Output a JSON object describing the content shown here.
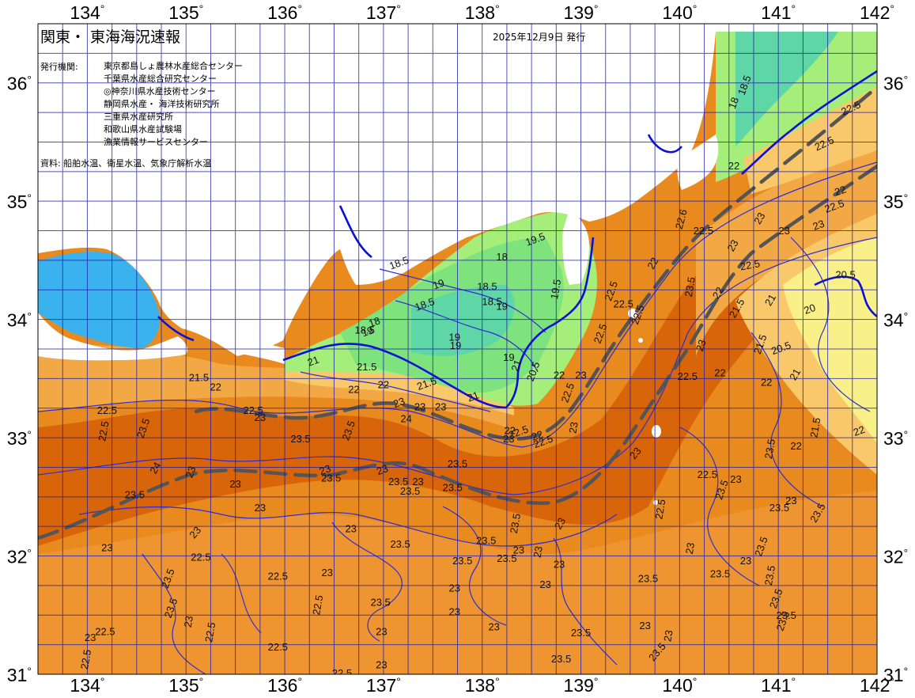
{
  "title": "関東・ 東海海況速報",
  "issued": "2025年12月9日 発行",
  "agencies_label": "発行機関:",
  "agencies": [
    "東京都島しょ農林水産総合センター",
    "千葉県水産総合研究センター",
    "◎神奈川県水産技術センター",
    "静岡県水産・ 海洋技術研究所",
    "三重県水産研究所",
    "和歌山県水産試験場",
    "漁業情報サービスセンター"
  ],
  "source_note": "資料: 船舶水温、衛星水温、気象庁解析水温",
  "axes": {
    "longitudes": [
      "134",
      "135",
      "136",
      "137",
      "138",
      "139",
      "140",
      "141",
      "142"
    ],
    "latitudes": [
      "36",
      "35",
      "34",
      "33",
      "32",
      "31"
    ],
    "degree_symbol": "°"
  },
  "colors": {
    "land": "#ffffff",
    "sea_warm_deep": "#d9650a",
    "sea_warm": "#e98a1e",
    "sea_mid": "#f2a845",
    "sea_light": "#f8c86a",
    "sea_pale": "#f9f089",
    "sea_cool_green": "#a6ee7a",
    "sea_cool_green2": "#7fe37d",
    "sea_teal": "#5fd6a6",
    "sea_blue": "#39b2ee",
    "grid": "#1a1aa8",
    "thin_isotherm": "#2d2dd4",
    "bold_isotherm": "#0a10d8",
    "kuroshio_axis": "#555555"
  },
  "isotherm_labels": [
    {
      "t": "18.5",
      "lon": 140.69,
      "lat": 35.97,
      "rot": -70
    },
    {
      "t": "18",
      "lon": 140.58,
      "lat": 35.82,
      "rot": -70
    },
    {
      "t": "22.5",
      "lon": 141.75,
      "lat": 35.76,
      "rot": -25
    },
    {
      "t": "22.5",
      "lon": 141.48,
      "lat": 35.46,
      "rot": -25
    },
    {
      "t": "22",
      "lon": 140.55,
      "lat": 35.27,
      "rot": 0
    },
    {
      "t": "22",
      "lon": 141.64,
      "lat": 35.06,
      "rot": -20
    },
    {
      "t": "22.5",
      "lon": 141.58,
      "lat": 34.93,
      "rot": -20
    },
    {
      "t": "22.6",
      "lon": 140.05,
      "lat": 34.84,
      "rot": -75
    },
    {
      "t": "22.5",
      "lon": 140.24,
      "lat": 34.72,
      "rot": 0
    },
    {
      "t": "23",
      "lon": 140.84,
      "lat": 34.84,
      "rot": -60
    },
    {
      "t": "23",
      "lon": 141.06,
      "lat": 34.72,
      "rot": 0
    },
    {
      "t": "23",
      "lon": 141.42,
      "lat": 34.77,
      "rot": -20
    },
    {
      "t": "22.5",
      "lon": 140.72,
      "lat": 34.43,
      "rot": -10
    },
    {
      "t": "23",
      "lon": 140.57,
      "lat": 34.61,
      "rot": -60
    },
    {
      "t": "20.5",
      "lon": 141.68,
      "lat": 34.35,
      "rot": 0
    },
    {
      "t": "22",
      "lon": 139.76,
      "lat": 34.46,
      "rot": -60
    },
    {
      "t": "23.5",
      "lon": 140.14,
      "lat": 34.27,
      "rot": -80
    },
    {
      "t": "22",
      "lon": 140.42,
      "lat": 34.21,
      "rot": -60
    },
    {
      "t": "21.5",
      "lon": 140.61,
      "lat": 34.08,
      "rot": -60
    },
    {
      "t": "21",
      "lon": 140.95,
      "lat": 34.15,
      "rot": -60
    },
    {
      "t": "20",
      "lon": 141.33,
      "lat": 34.06,
      "rot": -20
    },
    {
      "t": "20.5",
      "lon": 141.04,
      "lat": 33.73,
      "rot": -20
    },
    {
      "t": "21.5",
      "lon": 140.85,
      "lat": 33.78,
      "rot": -70
    },
    {
      "t": "22.5",
      "lon": 140.08,
      "lat": 33.49,
      "rot": 0
    },
    {
      "t": "22",
      "lon": 140.41,
      "lat": 33.52,
      "rot": 0
    },
    {
      "t": "22",
      "lon": 140.88,
      "lat": 33.44,
      "rot": 0
    },
    {
      "t": "21",
      "lon": 141.2,
      "lat": 33.52,
      "rot": -60
    },
    {
      "t": "23",
      "lon": 140.25,
      "lat": 33.77,
      "rot": -70
    },
    {
      "t": "21.5",
      "lon": 141.41,
      "lat": 33.08,
      "rot": -80
    },
    {
      "t": "22",
      "lon": 141.83,
      "lat": 33.03,
      "rot": -20
    },
    {
      "t": "22",
      "lon": 141.18,
      "lat": 32.9,
      "rot": 0
    },
    {
      "t": "23.5",
      "lon": 140.95,
      "lat": 32.9,
      "rot": -80
    },
    {
      "t": "22.5",
      "lon": 140.28,
      "lat": 32.66,
      "rot": 0
    },
    {
      "t": "23",
      "lon": 140.57,
      "lat": 32.62,
      "rot": 0
    },
    {
      "t": "23.5",
      "lon": 140.46,
      "lat": 32.55,
      "rot": -70
    },
    {
      "t": "22.5",
      "lon": 139.84,
      "lat": 32.39,
      "rot": -80
    },
    {
      "t": "23",
      "lon": 141.13,
      "lat": 32.44,
      "rot": 0
    },
    {
      "t": "23.5",
      "lon": 141.01,
      "lat": 32.38,
      "rot": 0
    },
    {
      "t": "23.5",
      "lon": 141.43,
      "lat": 32.35,
      "rot": -60
    },
    {
      "t": "23",
      "lon": 139.58,
      "lat": 32.85,
      "rot": -50
    },
    {
      "t": "23",
      "lon": 140.14,
      "lat": 32.06,
      "rot": -80
    },
    {
      "t": "23.5",
      "lon": 140.86,
      "lat": 32.07,
      "rot": -70
    },
    {
      "t": "23",
      "lon": 140.67,
      "lat": 31.93,
      "rot": 0
    },
    {
      "t": "23.5",
      "lon": 140.41,
      "lat": 31.82,
      "rot": 0
    },
    {
      "t": "23.5",
      "lon": 139.68,
      "lat": 31.78,
      "rot": 0
    },
    {
      "t": "23.5",
      "lon": 141.01,
      "lat": 31.63,
      "rot": -70
    },
    {
      "t": "23.5",
      "lon": 141.08,
      "lat": 31.44,
      "rot": -70
    },
    {
      "t": "23.5",
      "lon": 140.95,
      "lat": 31.83,
      "rot": -80
    },
    {
      "t": "23.5",
      "lon": 141.08,
      "lat": 31.47,
      "rot": 0
    },
    {
      "t": "23",
      "lon": 139.92,
      "lat": 31.32,
      "rot": -80
    },
    {
      "t": "23",
      "lon": 139.65,
      "lat": 31.38,
      "rot": 0
    },
    {
      "t": "23.5",
      "lon": 139.8,
      "lat": 31.17,
      "rot": -50
    },
    {
      "t": "23.5",
      "lon": 139.0,
      "lat": 31.32,
      "rot": 0
    },
    {
      "t": "22.5",
      "lon": 139.23,
      "lat": 33.87,
      "rot": -70
    },
    {
      "t": "22.5",
      "lon": 138.9,
      "lat": 33.37,
      "rot": -70
    },
    {
      "t": "23",
      "lon": 138.96,
      "lat": 33.08,
      "rot": -80
    },
    {
      "t": "22",
      "lon": 138.78,
      "lat": 33.5,
      "rot": 0
    },
    {
      "t": "23",
      "lon": 139.0,
      "lat": 33.5,
      "rot": 0
    },
    {
      "t": "22.5",
      "lon": 139.34,
      "lat": 34.23,
      "rot": -70
    },
    {
      "t": "22.5",
      "lon": 139.61,
      "lat": 34.03,
      "rot": -70
    },
    {
      "t": "22.5",
      "lon": 139.43,
      "lat": 34.1,
      "rot": 0
    },
    {
      "t": "19.5",
      "lon": 138.78,
      "lat": 34.25,
      "rot": -80
    },
    {
      "t": "21",
      "lon": 138.38,
      "lat": 33.6,
      "rot": -70
    },
    {
      "t": "20.5",
      "lon": 138.55,
      "lat": 33.55,
      "rot": -70
    },
    {
      "t": "19",
      "lon": 138.27,
      "lat": 33.65,
      "rot": 0
    },
    {
      "t": "21",
      "lon": 137.92,
      "lat": 33.32,
      "rot": -20
    },
    {
      "t": "22",
      "lon": 138.28,
      "lat": 33.03,
      "rot": 0
    },
    {
      "t": "22.5",
      "lon": 138.38,
      "lat": 33.02,
      "rot": -20
    },
    {
      "t": "23",
      "lon": 138.27,
      "lat": 32.96,
      "rot": 0
    },
    {
      "t": "22",
      "lon": 138.57,
      "lat": 32.99,
      "rot": -20
    },
    {
      "t": "22.5",
      "lon": 138.63,
      "lat": 32.94,
      "rot": -20
    },
    {
      "t": "23.5",
      "lon": 138.37,
      "lat": 32.27,
      "rot": -80
    },
    {
      "t": "23.5",
      "lon": 138.04,
      "lat": 32.1,
      "rot": 0
    },
    {
      "t": "23",
      "lon": 138.37,
      "lat": 32.02,
      "rot": 0
    },
    {
      "t": "23",
      "lon": 138.64,
      "lat": 31.73,
      "rot": 0
    },
    {
      "t": "23",
      "lon": 138.6,
      "lat": 32.03,
      "rot": -80
    },
    {
      "t": "23",
      "lon": 138.82,
      "lat": 32.26,
      "rot": -60
    },
    {
      "t": "23.5",
      "lon": 138.25,
      "lat": 31.95,
      "rot": 0
    },
    {
      "t": "23.5",
      "lon": 137.8,
      "lat": 31.93,
      "rot": 0
    },
    {
      "t": "23",
      "lon": 137.72,
      "lat": 31.7,
      "rot": 0
    },
    {
      "t": "23.5",
      "lon": 137.17,
      "lat": 32.07,
      "rot": 0
    },
    {
      "t": "23",
      "lon": 138.12,
      "lat": 31.37,
      "rot": 0
    },
    {
      "t": "23",
      "lon": 136.67,
      "lat": 32.2,
      "rot": 0
    },
    {
      "t": "23",
      "lon": 137.35,
      "lat": 32.6,
      "rot": 0
    },
    {
      "t": "23.5",
      "lon": 137.7,
      "lat": 32.55,
      "rot": 0
    },
    {
      "t": "23.5",
      "lon": 137.15,
      "lat": 32.6,
      "rot": 0
    },
    {
      "t": "23.5",
      "lon": 136.47,
      "lat": 32.63,
      "rot": 0
    },
    {
      "t": "23",
      "lon": 136.42,
      "lat": 32.7,
      "rot": -20
    },
    {
      "t": "23",
      "lon": 137.0,
      "lat": 32.7,
      "rot": -20
    },
    {
      "t": "23.5",
      "lon": 137.27,
      "lat": 32.52,
      "rot": 0
    },
    {
      "t": "23.5",
      "lon": 137.75,
      "lat": 32.75,
      "rot": 0
    },
    {
      "t": "23.5",
      "lon": 136.68,
      "lat": 33.05,
      "rot": -70
    },
    {
      "t": "22",
      "lon": 135.3,
      "lat": 33.4,
      "rot": 0
    },
    {
      "t": "22",
      "lon": 136.7,
      "lat": 33.38,
      "rot": 0
    },
    {
      "t": "22",
      "lon": 137.0,
      "lat": 33.42,
      "rot": 0
    },
    {
      "t": "23",
      "lon": 137.17,
      "lat": 33.27,
      "rot": -20
    },
    {
      "t": "23",
      "lon": 137.37,
      "lat": 33.23,
      "rot": 0
    },
    {
      "t": "23",
      "lon": 137.58,
      "lat": 33.23,
      "rot": 0
    },
    {
      "t": "24",
      "lon": 137.23,
      "lat": 33.13,
      "rot": 0
    },
    {
      "t": "21.5",
      "lon": 136.83,
      "lat": 33.57,
      "rot": 0
    },
    {
      "t": "21.5",
      "lon": 137.45,
      "lat": 33.43,
      "rot": -20
    },
    {
      "t": "21",
      "lon": 136.3,
      "lat": 33.62,
      "rot": -20
    },
    {
      "t": "21.5",
      "lon": 135.13,
      "lat": 33.48,
      "rot": 0
    },
    {
      "t": "22.5",
      "lon": 135.68,
      "lat": 33.2,
      "rot": 0
    },
    {
      "t": "23",
      "lon": 135.75,
      "lat": 33.14,
      "rot": 0
    },
    {
      "t": "23.5",
      "lon": 136.16,
      "lat": 32.96,
      "rot": 0
    },
    {
      "t": "22.5",
      "lon": 134.2,
      "lat": 33.2,
      "rot": 0
    },
    {
      "t": "23.5",
      "lon": 134.6,
      "lat": 33.07,
      "rot": -70
    },
    {
      "t": "22.5",
      "lon": 134.2,
      "lat": 33.05,
      "rot": -80
    },
    {
      "t": "24",
      "lon": 134.72,
      "lat": 32.73,
      "rot": -60
    },
    {
      "t": "23",
      "lon": 135.08,
      "lat": 32.7,
      "rot": -70
    },
    {
      "t": "23.5",
      "lon": 134.48,
      "lat": 32.49,
      "rot": 0
    },
    {
      "t": "23",
      "lon": 135.5,
      "lat": 32.58,
      "rot": 0
    },
    {
      "t": "23",
      "lon": 135.75,
      "lat": 32.38,
      "rot": 0
    },
    {
      "t": "23",
      "lon": 135.12,
      "lat": 32.18,
      "rot": -50
    },
    {
      "t": "23",
      "lon": 134.2,
      "lat": 32.04,
      "rot": 0
    },
    {
      "t": "22.5",
      "lon": 135.15,
      "lat": 31.96,
      "rot": 0
    },
    {
      "t": "22.5",
      "lon": 135.93,
      "lat": 31.8,
      "rot": 0
    },
    {
      "t": "23.5",
      "lon": 134.85,
      "lat": 31.8,
      "rot": -70
    },
    {
      "t": "23.5",
      "lon": 134.88,
      "lat": 31.55,
      "rot": -70
    },
    {
      "t": "23",
      "lon": 135.06,
      "lat": 31.44,
      "rot": -80
    },
    {
      "t": "22.5",
      "lon": 135.28,
      "lat": 31.35,
      "rot": -80
    },
    {
      "t": "22.5",
      "lon": 134.18,
      "lat": 31.33,
      "rot": 0
    },
    {
      "t": "22.5",
      "lon": 134.02,
      "lat": 31.12,
      "rot": -80
    },
    {
      "t": "23",
      "lon": 134.03,
      "lat": 31.28,
      "rot": 0
    },
    {
      "t": "23",
      "lon": 136.43,
      "lat": 31.83,
      "rot": 0
    },
    {
      "t": "22.5",
      "lon": 136.37,
      "lat": 31.58,
      "rot": -80
    },
    {
      "t": "23",
      "lon": 136.98,
      "lat": 31.33,
      "rot": 0
    },
    {
      "t": "23.5",
      "lon": 136.97,
      "lat": 31.58,
      "rot": 0
    },
    {
      "t": "22.5",
      "lon": 135.93,
      "lat": 31.2,
      "rot": 0
    },
    {
      "t": "22.5",
      "lon": 136.58,
      "lat": 30.98,
      "rot": 0
    },
    {
      "t": "23",
      "lon": 136.98,
      "lat": 31.05,
      "rot": 0
    },
    {
      "t": "23",
      "lon": 137.72,
      "lat": 31.5,
      "rot": 0
    },
    {
      "t": "23",
      "lon": 138.78,
      "lat": 31.9,
      "rot": 0
    },
    {
      "t": "23.5",
      "lon": 138.8,
      "lat": 31.1,
      "rot": 0
    },
    {
      "t": "19.5",
      "lon": 138.55,
      "lat": 34.65,
      "rot": -20
    },
    {
      "t": "18",
      "lon": 138.2,
      "lat": 34.5,
      "rot": 0
    },
    {
      "t": "18.5",
      "lon": 138.05,
      "lat": 34.25,
      "rot": 0
    },
    {
      "t": "19",
      "lon": 138.2,
      "lat": 34.08,
      "rot": 0
    },
    {
      "t": "18.5",
      "lon": 138.1,
      "lat": 34.12,
      "rot": 0
    },
    {
      "t": "19",
      "lon": 137.57,
      "lat": 34.27,
      "rot": -20
    },
    {
      "t": "18.5",
      "lon": 137.43,
      "lat": 34.1,
      "rot": -20
    },
    {
      "t": "18",
      "lon": 136.92,
      "lat": 33.95,
      "rot": -20
    },
    {
      "t": "18.5",
      "lon": 137.17,
      "lat": 34.45,
      "rot": -20
    },
    {
      "t": "19",
      "lon": 136.85,
      "lat": 33.87,
      "rot": -20
    },
    {
      "t": "19",
      "lon": 137.73,
      "lat": 33.75,
      "rot": 0
    },
    {
      "t": "18.5",
      "lon": 136.81,
      "lat": 33.88,
      "rot": 0
    },
    {
      "t": "19",
      "lon": 137.72,
      "lat": 33.82,
      "rot": 0
    }
  ]
}
